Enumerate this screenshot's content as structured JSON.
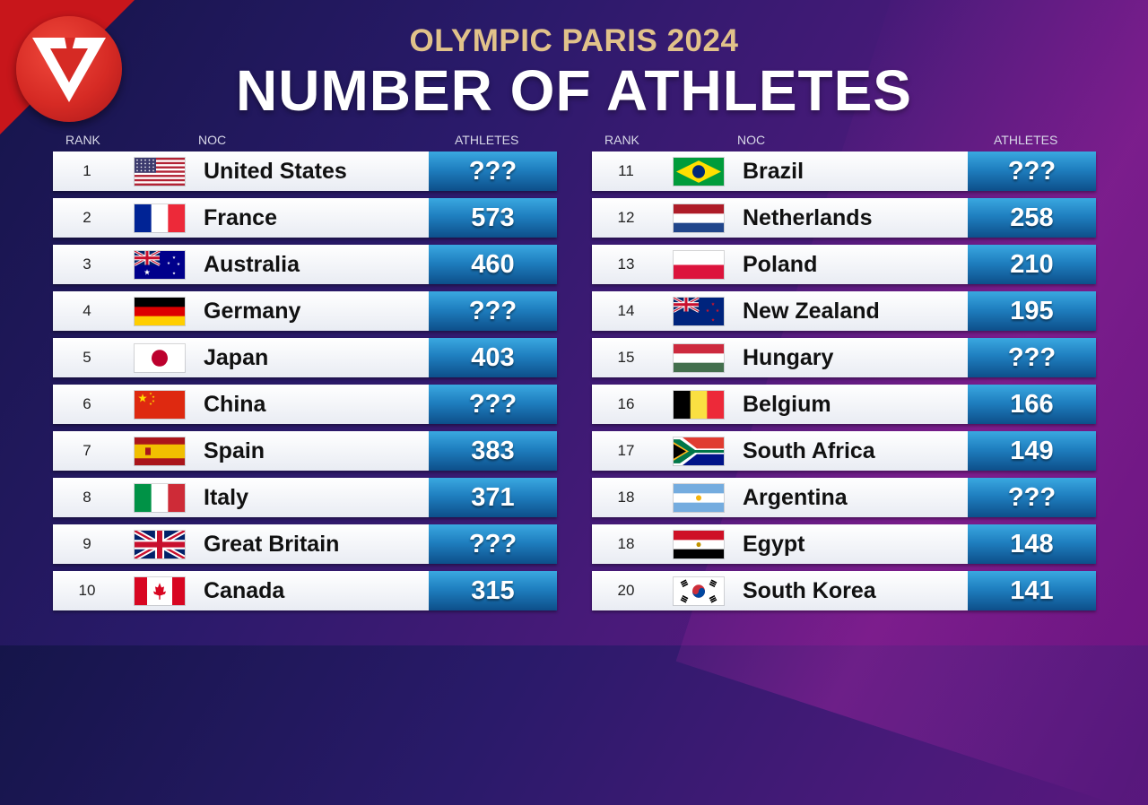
{
  "subtitle": "OLYMPIC PARIS 2024",
  "title": "NUMBER OF ATHLETES",
  "headers": {
    "rank": "RANK",
    "noc": "NOC",
    "athletes": "ATHLETES"
  },
  "left": [
    {
      "rank": "1",
      "noc": "United States",
      "athletes": "???",
      "flag": "us-flag"
    },
    {
      "rank": "2",
      "noc": "France",
      "athletes": "573",
      "flag": "fr-flag"
    },
    {
      "rank": "3",
      "noc": "Australia",
      "athletes": "460",
      "flag": "au-flag"
    },
    {
      "rank": "4",
      "noc": "Germany",
      "athletes": "???",
      "flag": "de-flag"
    },
    {
      "rank": "5",
      "noc": "Japan",
      "athletes": "403",
      "flag": "jp-flag"
    },
    {
      "rank": "6",
      "noc": "China",
      "athletes": "???",
      "flag": "cn-flag"
    },
    {
      "rank": "7",
      "noc": "Spain",
      "athletes": "383",
      "flag": "es-flag"
    },
    {
      "rank": "8",
      "noc": "Italy",
      "athletes": "371",
      "flag": "it-flag"
    },
    {
      "rank": "9",
      "noc": "Great Britain",
      "athletes": "???",
      "flag": "gb-flag"
    },
    {
      "rank": "10",
      "noc": "Canada",
      "athletes": "315",
      "flag": "ca-flag"
    }
  ],
  "right": [
    {
      "rank": "11",
      "noc": "Brazil",
      "athletes": "???",
      "flag": "br-flag"
    },
    {
      "rank": "12",
      "noc": "Netherlands",
      "athletes": "258",
      "flag": "nl-flag"
    },
    {
      "rank": "13",
      "noc": "Poland",
      "athletes": "210",
      "flag": "pl-flag"
    },
    {
      "rank": "14",
      "noc": "New Zealand",
      "athletes": "195",
      "flag": "nz-flag"
    },
    {
      "rank": "15",
      "noc": "Hungary",
      "athletes": "???",
      "flag": "hu-flag"
    },
    {
      "rank": "16",
      "noc": "Belgium",
      "athletes": "166",
      "flag": "be-flag"
    },
    {
      "rank": "17",
      "noc": "South Africa",
      "athletes": "149",
      "flag": "za-flag"
    },
    {
      "rank": "18",
      "noc": "Argentina",
      "athletes": "???",
      "flag": "ar-flag"
    },
    {
      "rank": "18",
      "noc": "Egypt",
      "athletes": "148",
      "flag": "eg-flag"
    },
    {
      "rank": "20",
      "noc": "South Korea",
      "athletes": "141",
      "flag": "kr-flag"
    }
  ]
}
